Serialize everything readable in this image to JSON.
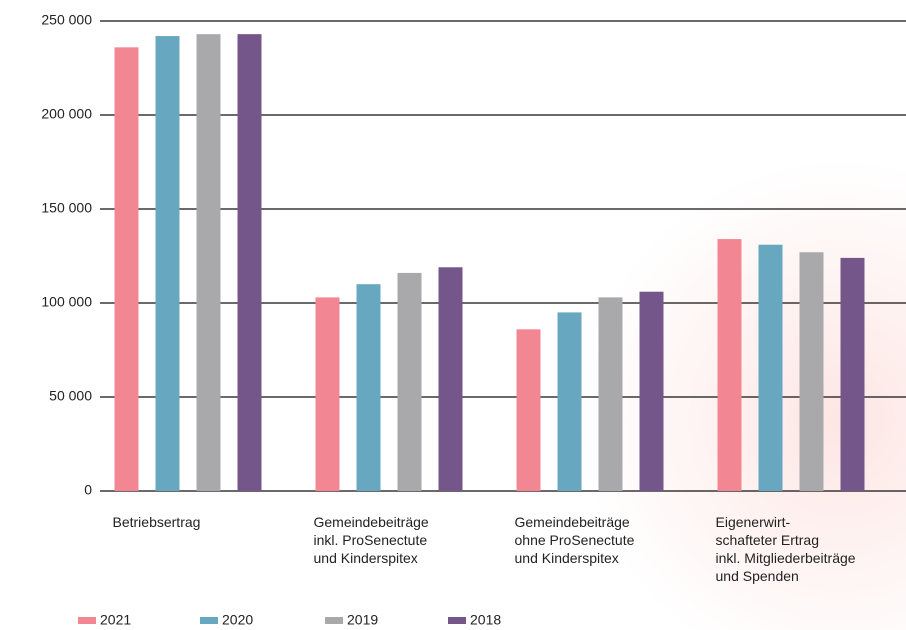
{
  "chart_data": {
    "type": "bar",
    "categories": [
      "Betriebsertrag",
      "Gemeindebeiträge\ninkl. ProSenectute\nund Kinderspitex",
      "Gemeindebeiträge\nohne ProSenectute\nund Kinderspitex",
      "Eigenerwirt-\nschafteter Ertrag\ninkl. Mitgliederbeiträge\nund Spenden"
    ],
    "series": [
      {
        "name": "2021",
        "color": "#f28793",
        "values": [
          236000,
          103000,
          86000,
          134000
        ]
      },
      {
        "name": "2020",
        "color": "#67a8c0",
        "values": [
          242000,
          110000,
          95000,
          131000
        ]
      },
      {
        "name": "2019",
        "color": "#a9a9ab",
        "values": [
          243000,
          116000,
          103000,
          127000
        ]
      },
      {
        "name": "2018",
        "color": "#74568a",
        "values": [
          243000,
          119000,
          106000,
          124000
        ]
      }
    ],
    "ylim": [
      0,
      250000
    ],
    "yticks": [
      0,
      {
        "value": 50000,
        "label": "50 000"
      },
      {
        "value": 100000,
        "label": "100 000"
      },
      {
        "value": 150000,
        "label": "150 000"
      },
      {
        "value": 200000,
        "label": "200 000"
      },
      {
        "value": 250000,
        "label": "250 000"
      }
    ],
    "grid": true
  }
}
